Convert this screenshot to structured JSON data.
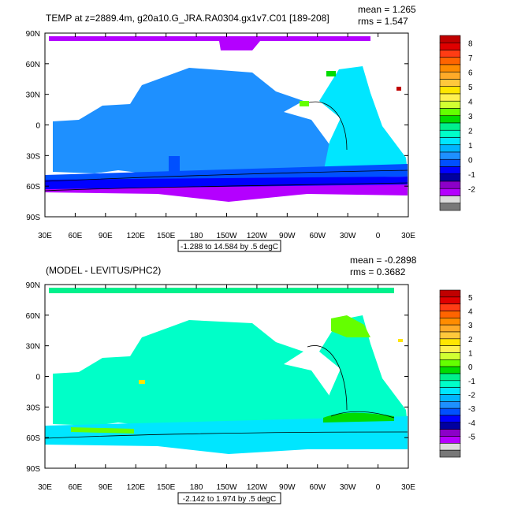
{
  "x_ticks": [
    "30E",
    "60E",
    "90E",
    "120E",
    "150E",
    "180",
    "150W",
    "120W",
    "90W",
    "60W",
    "30W",
    "0",
    "30E"
  ],
  "y_ticks": [
    "90N",
    "60N",
    "30N",
    "0",
    "30S",
    "60S",
    "90S"
  ],
  "colors": {
    "ocean_top": "#1e90ff",
    "land": "#ffffff",
    "frame": "#000000"
  },
  "panels": [
    {
      "title": "TEMP at z=2889.4m, g20a10.G_JRA.RA0304.gx1v7.C01 [189-208]",
      "mean": "mean = 1.265",
      "rms": "rms = 1.547",
      "range_label": "-1.288 to 14.584 by .5 degC",
      "colorbar": {
        "labels": [
          "8",
          "7",
          "6",
          "5",
          "4",
          "3",
          "2",
          "1",
          "0",
          "-1",
          "-2"
        ],
        "colors": [
          "#c00000",
          "#e00000",
          "#ff3c14",
          "#ff6400",
          "#ff8c00",
          "#ffaa28",
          "#ffc83c",
          "#ffe600",
          "#fff050",
          "#d2ff32",
          "#64ff00",
          "#00dc00",
          "#00f08c",
          "#00ffc8",
          "#00e6ff",
          "#00b4ff",
          "#1e90ff",
          "#0050ff",
          "#0000ff",
          "#0000a0",
          "#8c00c8",
          "#b400ff",
          "#dcdcdc",
          "#787878"
        ]
      }
    },
    {
      "title": "(MODEL - LEVITUS/PHC2)",
      "mean": "mean = -0.2898",
      "rms": "rms = 0.3682",
      "range_label": "-2.142 to 1.974 by .5 degC",
      "colorbar": {
        "labels": [
          "5",
          "4",
          "3",
          "2",
          "1",
          "0",
          "-1",
          "-2",
          "-3",
          "-4",
          "-5"
        ],
        "colors": [
          "#c00000",
          "#e00000",
          "#ff3c14",
          "#ff6400",
          "#ff8c00",
          "#ffaa28",
          "#ffc83c",
          "#ffe600",
          "#fff050",
          "#d2ff32",
          "#64ff00",
          "#00dc00",
          "#00f08c",
          "#00ffc8",
          "#00e6ff",
          "#00b4ff",
          "#1e90ff",
          "#0050ff",
          "#0000ff",
          "#0000a0",
          "#8c00c8",
          "#b400ff",
          "#dcdcdc",
          "#787878"
        ]
      }
    }
  ]
}
